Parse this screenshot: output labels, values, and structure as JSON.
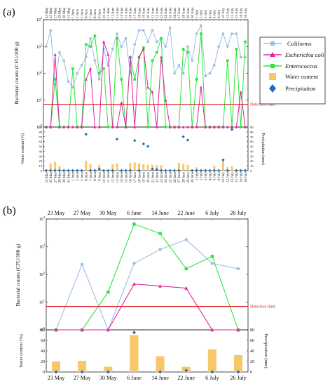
{
  "colors": {
    "coliforms": "#9dbde3",
    "ecoli": "#e3239d",
    "enterococcus": "#2ae83a",
    "water": "#f7c86a",
    "precip": "#1f6fb8",
    "detection": "#e01b1b"
  },
  "chart_data": [
    {
      "panel": "(a)",
      "type": "line",
      "categories": [
        "23 May",
        "25 May",
        "27 May",
        "29 May",
        "30 May",
        "31 May",
        "1 June",
        "2 June",
        "5 June",
        "6 June",
        "7 June",
        "8 June",
        "9 June",
        "10 June",
        "11 June",
        "12 June",
        "13 June",
        "14 June",
        "15 June",
        "16 June",
        "17 June",
        "18 June",
        "19 June",
        "20 June",
        "21 June",
        "22 June",
        "23 June",
        "24 June",
        "25 June",
        "26 June",
        "27 June",
        "28 June",
        "29 June",
        "30 June",
        "1 July",
        "2 July",
        "3 July",
        "4 July",
        "5 July",
        "6 July",
        "10 July",
        "12 July",
        "13 July",
        "15 July",
        "16 July",
        "26 July"
      ],
      "yscale": "log",
      "ylim": [
        1,
        10000
      ],
      "ylabel": "Bacterial counts (CFU/100 g)",
      "y2label": "Water content (%)",
      "y3label": "Precipitation (mm)",
      "y2lim": [
        0,
        90
      ],
      "y3lim": [
        0,
        90
      ],
      "detection_limit": 7,
      "detection_label": "Detection limit",
      "series": [
        {
          "name": "Coliforms",
          "values": [
            1000,
            4000,
            40,
            600,
            300,
            50,
            30,
            100,
            200,
            400,
            2000,
            300,
            60,
            800,
            200,
            800,
            3000,
            1000,
            2000,
            100,
            1200,
            4000,
            4000,
            1500,
            4000,
            1500,
            2000,
            1000,
            5000,
            100,
            200,
            100,
            1000,
            300,
            3000,
            6000,
            80,
            100,
            200,
            1000,
            3000,
            1000,
            3000,
            3000,
            400,
            400
          ]
        },
        {
          "name": "Escherichia coli",
          "values": [
            1,
            1,
            500,
            1,
            1,
            1,
            1,
            1,
            1,
            60,
            150,
            1,
            1,
            1500,
            500,
            1,
            1,
            8,
            1,
            400,
            1,
            400,
            800,
            30,
            20,
            1,
            400,
            10,
            1,
            1,
            1,
            1,
            1,
            1,
            1,
            30,
            1,
            1,
            1,
            1,
            1,
            1,
            1,
            1,
            20,
            1
          ]
        },
        {
          "name": "Enterococcus",
          "values": [
            1,
            1,
            60,
            1,
            1,
            1,
            150,
            1,
            1,
            1200,
            1000,
            2500,
            100,
            150,
            1,
            1,
            2000,
            60,
            1,
            400,
            60,
            400,
            900,
            1,
            300,
            600,
            2000,
            1,
            1,
            1,
            1,
            800,
            600,
            1,
            60,
            3000,
            1,
            1,
            1,
            1,
            1,
            300,
            1,
            800,
            1,
            1500
          ]
        }
      ],
      "water_content": [
        0,
        15,
        18,
        9,
        3,
        1,
        0,
        1,
        0,
        20,
        13,
        0,
        12,
        1,
        1,
        13,
        15,
        1,
        0,
        16,
        17,
        15,
        13,
        12,
        12,
        11,
        11,
        1,
        1,
        0,
        16,
        13,
        12,
        1,
        7,
        0,
        1,
        0,
        10,
        0,
        20,
        7,
        9,
        0,
        1,
        1
      ],
      "precipitation": [
        0,
        0,
        0,
        0,
        0,
        0,
        0,
        0,
        0,
        75,
        0,
        0,
        3,
        0,
        0,
        0,
        65,
        0,
        0,
        0,
        62,
        0,
        55,
        50,
        3,
        2,
        0,
        0,
        0,
        0,
        0,
        70,
        63,
        0,
        0,
        0,
        0,
        0,
        0,
        0,
        22,
        0,
        85,
        0,
        0,
        0
      ]
    },
    {
      "panel": "(b)",
      "type": "line",
      "categories": [
        "23 May",
        "27 May",
        "30 May",
        "6 June",
        "14 June",
        "22 June",
        "6 July",
        "26 July"
      ],
      "yscale": "log",
      "ylim": [
        1,
        10000
      ],
      "ylabel": "Bacterial counts (CFU/100 g)",
      "y2label": "Water content (%)",
      "y3label": "Precipitation (mm)",
      "y2lim": [
        0,
        80
      ],
      "y3lim": [
        0,
        80
      ],
      "detection_limit": 7,
      "detection_label": "Detection limit",
      "series": [
        {
          "name": "Coliforms",
          "values": [
            1,
            230,
            1,
            250,
            800,
            1800,
            250,
            160
          ]
        },
        {
          "name": "Escherichia coli",
          "values": [
            1,
            1,
            1,
            45,
            38,
            32,
            1,
            1
          ]
        },
        {
          "name": "Enterococcus",
          "values": [
            1,
            1,
            23,
            6500,
            3000,
            160,
            450,
            1
          ]
        }
      ],
      "water_content": [
        20,
        21,
        10,
        70,
        30,
        10,
        43,
        32
      ],
      "precipitation": [
        0,
        0,
        0,
        75,
        0,
        3,
        0,
        0
      ]
    }
  ],
  "legend": {
    "items": [
      "Coliforms",
      "Escherichia coli",
      "Enterococcus",
      "Water content",
      "Precipitation"
    ]
  }
}
